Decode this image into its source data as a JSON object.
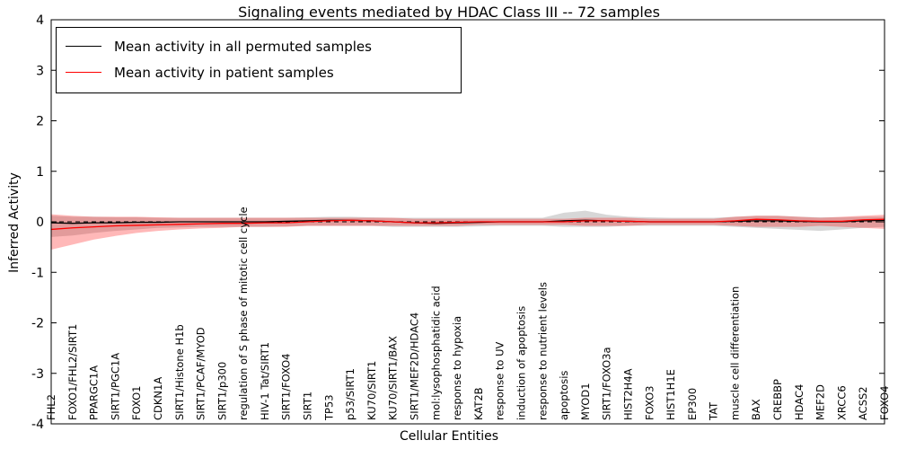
{
  "chart_data": {
    "type": "line",
    "title": "Signaling events mediated by HDAC Class III -- 72 samples",
    "xlabel": "Cellular Entities",
    "ylabel": "Inferred Activity",
    "ylim": [
      -4,
      4
    ],
    "yticks": [
      -4,
      -3,
      -2,
      -1,
      0,
      1,
      2,
      3,
      4
    ],
    "grid": false,
    "legend_position": "upper left",
    "categories": [
      "FHL2",
      "FOXO1/FHL2/SIRT1",
      "PPARGC1A",
      "SIRT1/PGC1A",
      "FOXO1",
      "CDKN1A",
      "SIRT1/Histone H1b",
      "SIRT1/PCAF/MYOD",
      "SIRT1/p300",
      "regulation of S phase of mitotic cell cycle",
      "HIV-1 Tat/SIRT1",
      "SIRT1/FOXO4",
      "SIRT1",
      "TP53",
      "p53/SIRT1",
      "KU70/SIRT1",
      "KU70/SIRT1/BAX",
      "SIRT1/MEF2D/HDAC4",
      "mol:lysophosphatidic acid",
      "response to hypoxia",
      "KAT2B",
      "response to UV",
      "induction of apoptosis",
      "response to nutrient levels",
      "apoptosis",
      "MYOD1",
      "SIRT1/FOXO3a",
      "HIST2H4A",
      "FOXO3",
      "HIST1H1E",
      "EP300",
      "TAT",
      "muscle cell differentiation",
      "BAX",
      "CREBBP",
      "HDAC4",
      "MEF2D",
      "XRCC6",
      "ACSS2",
      "FOXO4"
    ],
    "series": [
      {
        "name": "Mean activity in all permuted samples",
        "color": "#000000",
        "band_color": "rgba(110,110,110,0.28)",
        "values": [
          -0.02,
          -0.03,
          -0.02,
          -0.02,
          -0.01,
          -0.01,
          0.0,
          0.0,
          0.0,
          0.0,
          0.0,
          0.01,
          0.02,
          0.03,
          0.03,
          0.02,
          0.0,
          -0.02,
          -0.03,
          -0.02,
          -0.01,
          0.0,
          0.0,
          0.0,
          0.02,
          0.03,
          0.02,
          0.01,
          0.0,
          0.0,
          0.0,
          0.0,
          0.01,
          0.02,
          0.02,
          0.01,
          0.0,
          0.0,
          0.02,
          0.03
        ],
        "upper": [
          0.12,
          0.1,
          0.1,
          0.09,
          0.09,
          0.08,
          0.08,
          0.08,
          0.08,
          0.08,
          0.08,
          0.08,
          0.09,
          0.1,
          0.1,
          0.09,
          0.08,
          0.08,
          0.08,
          0.08,
          0.08,
          0.08,
          0.08,
          0.08,
          0.18,
          0.22,
          0.14,
          0.1,
          0.09,
          0.08,
          0.08,
          0.08,
          0.1,
          0.12,
          0.12,
          0.1,
          0.09,
          0.09,
          0.1,
          0.1
        ],
        "lower": [
          -0.3,
          -0.27,
          -0.22,
          -0.18,
          -0.15,
          -0.12,
          -0.11,
          -0.1,
          -0.1,
          -0.1,
          -0.1,
          -0.09,
          -0.08,
          -0.08,
          -0.08,
          -0.08,
          -0.1,
          -0.1,
          -0.1,
          -0.1,
          -0.09,
          -0.08,
          -0.08,
          -0.08,
          -0.1,
          -0.1,
          -0.1,
          -0.08,
          -0.08,
          -0.08,
          -0.08,
          -0.08,
          -0.1,
          -0.12,
          -0.14,
          -0.16,
          -0.18,
          -0.15,
          -0.12,
          -0.1
        ]
      },
      {
        "name": "Mean activity in patient samples",
        "color": "#ff0000",
        "band_color": "rgba(255,0,0,0.28)",
        "values": [
          -0.15,
          -0.12,
          -0.1,
          -0.08,
          -0.07,
          -0.06,
          -0.05,
          -0.04,
          -0.03,
          -0.03,
          -0.02,
          -0.02,
          0.0,
          0.02,
          0.03,
          0.02,
          0.0,
          -0.02,
          -0.02,
          -0.01,
          0.0,
          0.0,
          0.0,
          0.0,
          0.0,
          0.02,
          0.02,
          0.01,
          0.0,
          0.0,
          0.0,
          0.0,
          0.02,
          0.05,
          0.04,
          0.02,
          0.01,
          0.01,
          0.04,
          0.05
        ],
        "upper": [
          0.15,
          0.12,
          0.1,
          0.1,
          0.1,
          0.09,
          0.08,
          0.08,
          0.08,
          0.08,
          0.08,
          0.08,
          0.08,
          0.08,
          0.08,
          0.08,
          0.08,
          0.06,
          0.06,
          0.06,
          0.06,
          0.06,
          0.06,
          0.06,
          0.06,
          0.08,
          0.08,
          0.08,
          0.06,
          0.06,
          0.06,
          0.06,
          0.1,
          0.12,
          0.12,
          0.1,
          0.08,
          0.1,
          0.12,
          0.14
        ],
        "lower": [
          -0.55,
          -0.45,
          -0.35,
          -0.28,
          -0.22,
          -0.18,
          -0.15,
          -0.13,
          -0.12,
          -0.1,
          -0.1,
          -0.1,
          -0.08,
          -0.08,
          -0.08,
          -0.08,
          -0.08,
          -0.08,
          -0.08,
          -0.08,
          -0.06,
          -0.06,
          -0.06,
          -0.06,
          -0.06,
          -0.08,
          -0.08,
          -0.08,
          -0.06,
          -0.06,
          -0.06,
          -0.06,
          -0.08,
          -0.1,
          -0.1,
          -0.1,
          -0.08,
          -0.1,
          -0.12,
          -0.14
        ]
      }
    ]
  },
  "legend": {
    "items": [
      {
        "label": "Mean activity in all permuted samples",
        "color": "#000000"
      },
      {
        "label": "Mean activity in patient samples",
        "color": "#ff0000"
      }
    ]
  }
}
